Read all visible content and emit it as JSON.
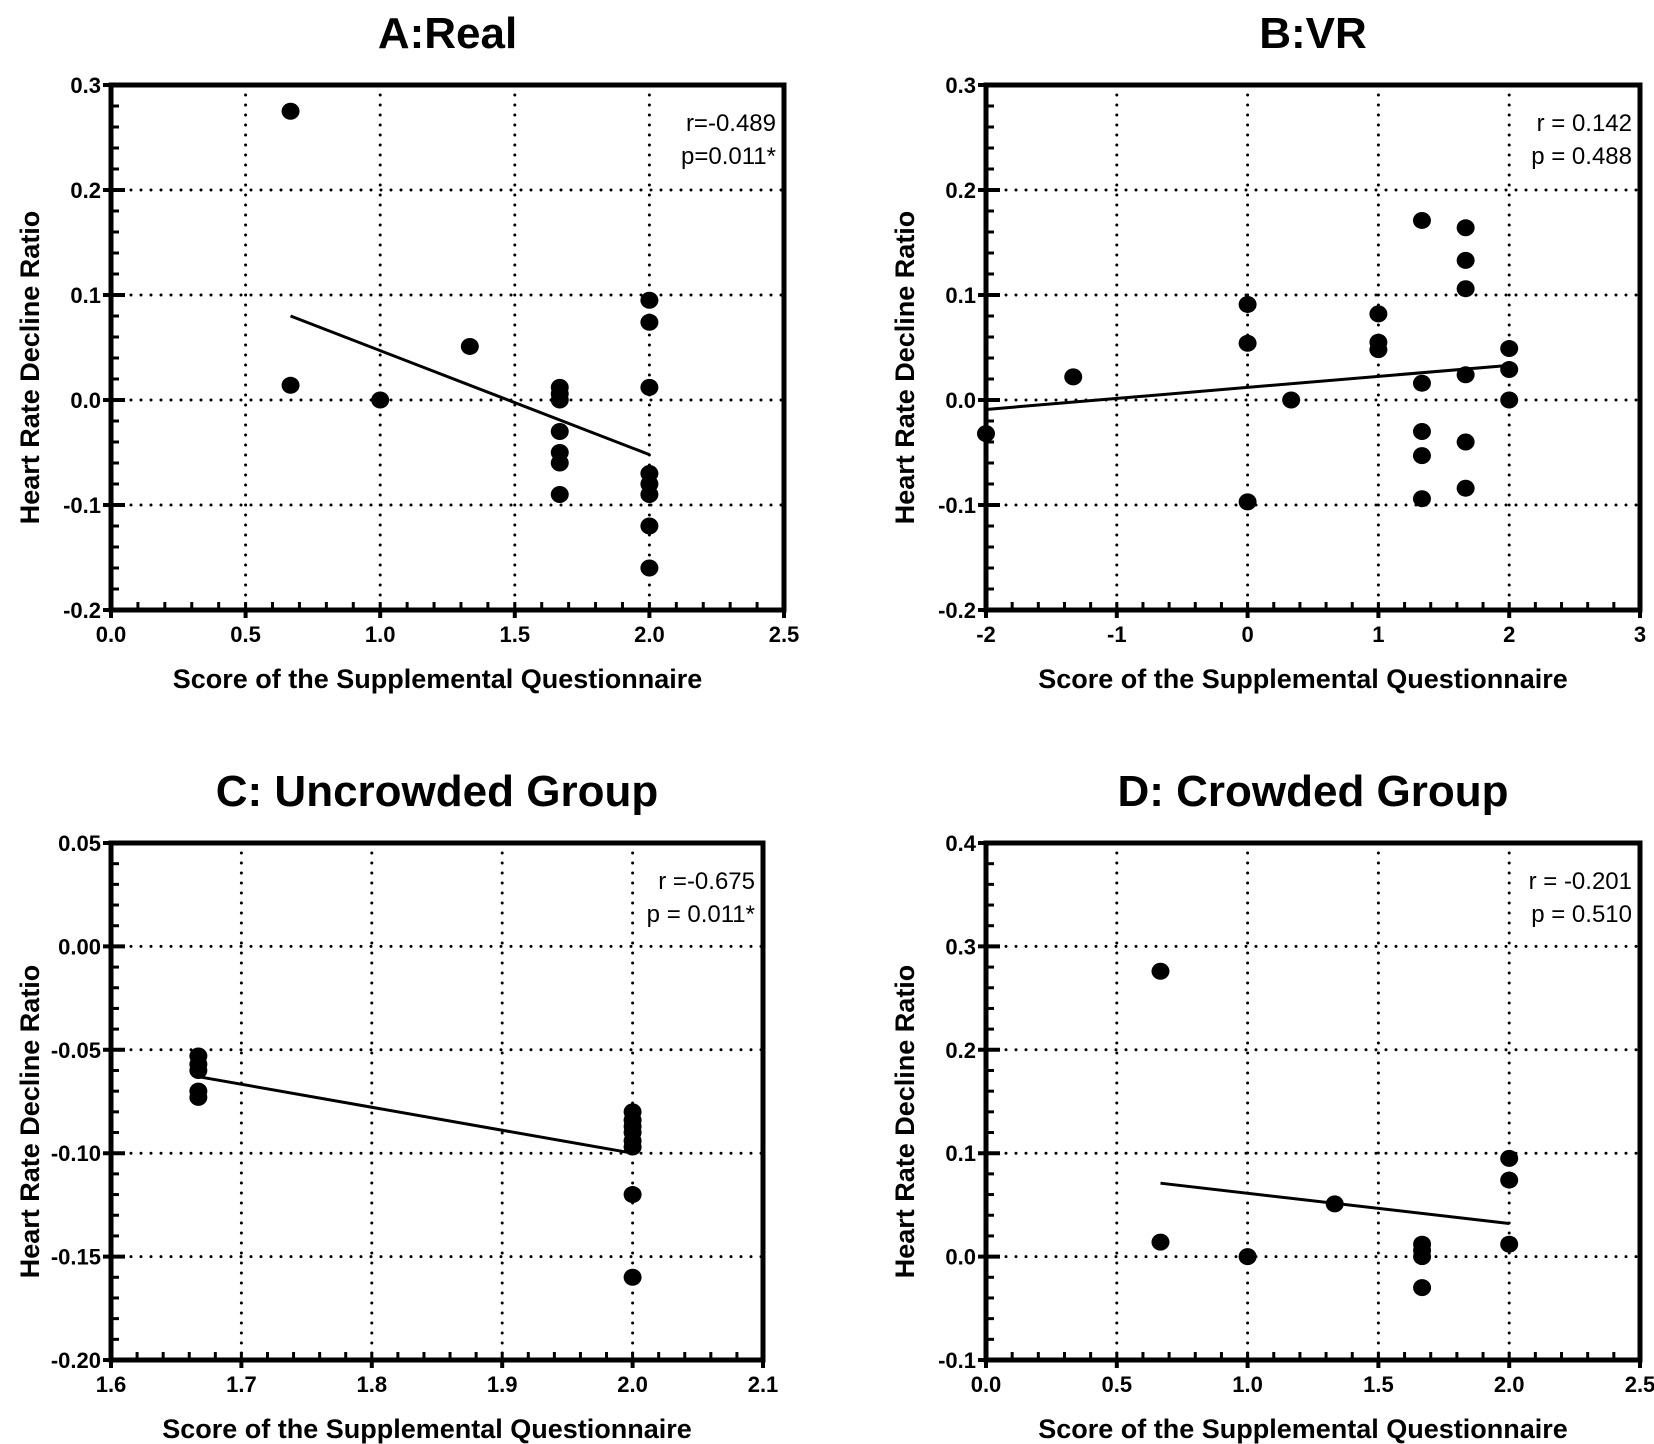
{
  "chart_data": [
    {
      "type": "scatter",
      "title": "A:Real",
      "xlabel": "Score of the Supplemental Questionnaire",
      "ylabel": "Heart Rate Decline Ratio",
      "xlim": [
        0,
        2.5
      ],
      "ylim": [
        -0.2,
        0.3
      ],
      "xticks": [
        "0.0",
        "0.5",
        "1.0",
        "1.5",
        "2.0",
        "2.5"
      ],
      "xtick_values": [
        0,
        0.5,
        1,
        1.5,
        2,
        2.5
      ],
      "yticks": [
        "-0.2",
        "-0.1",
        "0.0",
        "0.1",
        "0.2",
        "0.3"
      ],
      "ytick_values": [
        -0.2,
        -0.1,
        0,
        0.1,
        0.2,
        0.3
      ],
      "xminor": 0.1,
      "yminor": 0.02,
      "grid": true,
      "stats": [
        "r=-0.489",
        "p=0.011*"
      ],
      "points": [
        [
          0.667,
          0.275
        ],
        [
          0.667,
          0.014
        ],
        [
          1,
          0
        ],
        [
          1.333,
          0.051
        ],
        [
          1.667,
          0.012
        ],
        [
          1.667,
          0.006
        ],
        [
          1.667,
          0
        ],
        [
          1.667,
          -0.03
        ],
        [
          1.667,
          -0.05
        ],
        [
          1.667,
          -0.06
        ],
        [
          1.667,
          -0.09
        ],
        [
          2,
          0.095
        ],
        [
          2,
          0.074
        ],
        [
          2,
          0.012
        ],
        [
          2,
          -0.07
        ],
        [
          2,
          -0.08
        ],
        [
          2,
          -0.09
        ],
        [
          2,
          -0.12
        ],
        [
          2,
          -0.16
        ]
      ],
      "fit_line": [
        [
          0.667,
          0.08
        ],
        [
          2,
          -0.052
        ]
      ]
    },
    {
      "type": "scatter",
      "title": "B:VR",
      "xlabel": "Score of the Supplemental Questionnaire",
      "ylabel": "Heart Rate Decline Ratio",
      "xlim": [
        -2,
        3
      ],
      "ylim": [
        -0.2,
        0.3
      ],
      "xticks": [
        "-2",
        "-1",
        "0",
        "1",
        "2",
        "3"
      ],
      "xtick_values": [
        -2,
        -1,
        0,
        1,
        2,
        3
      ],
      "yticks": [
        "-0.2",
        "-0.1",
        "0.0",
        "0.1",
        "0.2",
        "0.3"
      ],
      "ytick_values": [
        -0.2,
        -0.1,
        0,
        0.1,
        0.2,
        0.3
      ],
      "xminor": 0.2,
      "yminor": 0.02,
      "grid": true,
      "stats": [
        "r = 0.142",
        "p = 0.488"
      ],
      "points": [
        [
          -2,
          -0.032
        ],
        [
          -1.333,
          0.022
        ],
        [
          0,
          0.091
        ],
        [
          0,
          0.054
        ],
        [
          0,
          -0.097
        ],
        [
          0.333,
          0
        ],
        [
          1,
          0.082
        ],
        [
          1,
          0.055
        ],
        [
          1,
          0.048
        ],
        [
          1.333,
          0.171
        ],
        [
          1.333,
          0.016
        ],
        [
          1.333,
          -0.03
        ],
        [
          1.333,
          -0.053
        ],
        [
          1.333,
          -0.094
        ],
        [
          1.667,
          0.164
        ],
        [
          1.667,
          0.133
        ],
        [
          1.667,
          0.106
        ],
        [
          1.667,
          0.024
        ],
        [
          1.667,
          -0.04
        ],
        [
          1.667,
          -0.084
        ],
        [
          2,
          0.049
        ],
        [
          2,
          0.029
        ],
        [
          2,
          0
        ]
      ],
      "fit_line": [
        [
          -2,
          -0.009
        ],
        [
          2,
          0.033
        ]
      ]
    },
    {
      "type": "scatter",
      "title": "C: Uncrowded Group",
      "xlabel": "Score of the Supplemental Questionnaire",
      "ylabel": "Heart Rate Decline Ratio",
      "xlim": [
        1.6,
        2.1
      ],
      "ylim": [
        -0.2,
        0.05
      ],
      "xticks": [
        "1.6",
        "1.7",
        "1.8",
        "1.9",
        "2.0",
        "2.1"
      ],
      "xtick_values": [
        1.6,
        1.7,
        1.8,
        1.9,
        2.0,
        2.1
      ],
      "yticks": [
        "-0.20",
        "-0.15",
        "-0.10",
        "-0.05",
        "0.00",
        "0.05"
      ],
      "ytick_values": [
        -0.2,
        -0.15,
        -0.1,
        -0.05,
        0,
        0.05
      ],
      "xminor": 0.02,
      "yminor": 0.01,
      "grid": true,
      "stats": [
        "r =-0.675",
        "p = 0.011*"
      ],
      "points": [
        [
          1.667,
          -0.053
        ],
        [
          1.667,
          -0.057
        ],
        [
          1.667,
          -0.06
        ],
        [
          1.667,
          -0.07
        ],
        [
          1.667,
          -0.073
        ],
        [
          2,
          -0.08
        ],
        [
          2,
          -0.084
        ],
        [
          2,
          -0.087
        ],
        [
          2,
          -0.09
        ],
        [
          2,
          -0.094
        ],
        [
          2,
          -0.097
        ],
        [
          2,
          -0.12
        ],
        [
          2,
          -0.16
        ]
      ],
      "fit_line": [
        [
          1.667,
          -0.063
        ],
        [
          2,
          -0.1
        ]
      ]
    },
    {
      "type": "scatter",
      "title": "D: Crowded Group",
      "xlabel": "Score of the Supplemental Questionnaire",
      "ylabel": "Heart Rate Decline Ratio",
      "xlim": [
        0,
        2.5
      ],
      "ylim": [
        -0.1,
        0.4
      ],
      "xticks": [
        "0.0",
        "0.5",
        "1.0",
        "1.5",
        "2.0",
        "2.5"
      ],
      "xtick_values": [
        0,
        0.5,
        1,
        1.5,
        2,
        2.5
      ],
      "yticks": [
        "-0.1",
        "0.0",
        "0.1",
        "0.2",
        "0.3",
        "0.4"
      ],
      "ytick_values": [
        -0.1,
        0,
        0.1,
        0.2,
        0.3,
        0.4
      ],
      "xminor": 0.1,
      "yminor": 0.02,
      "grid": true,
      "stats": [
        "r = -0.201",
        "p = 0.510"
      ],
      "points": [
        [
          0.667,
          0.276
        ],
        [
          0.667,
          0.014
        ],
        [
          1,
          0
        ],
        [
          1.333,
          0.051
        ],
        [
          1.667,
          0.012
        ],
        [
          1.667,
          0.006
        ],
        [
          1.667,
          0
        ],
        [
          1.667,
          -0.03
        ],
        [
          2,
          0.095
        ],
        [
          2,
          0.074
        ],
        [
          2,
          0.012
        ]
      ],
      "fit_line": [
        [
          0.667,
          0.071
        ],
        [
          2,
          0.032
        ]
      ]
    }
  ]
}
